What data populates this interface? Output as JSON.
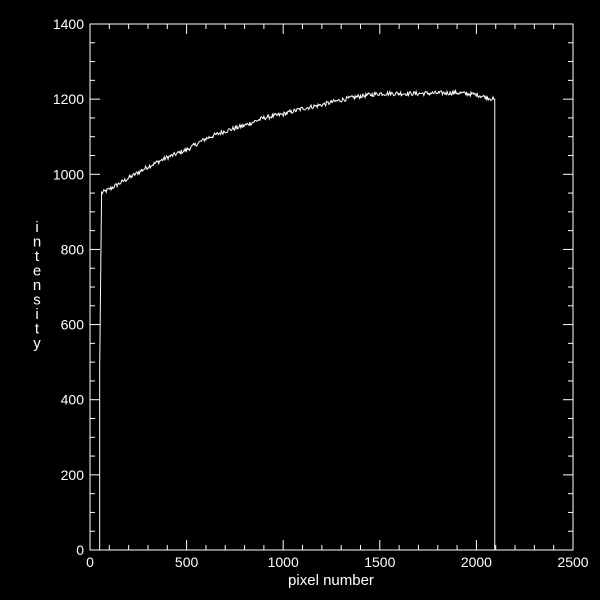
{
  "chart_data": {
    "type": "line",
    "title": "",
    "xlabel": "pixel number",
    "ylabel": "intensity",
    "xlim": [
      0,
      2500
    ],
    "ylim": [
      0,
      1400
    ],
    "x_ticks": [
      0,
      500,
      1000,
      1500,
      2000,
      2500
    ],
    "x_tick_labels": [
      "0",
      "500",
      "1000",
      "1500",
      "2000",
      "2500"
    ],
    "y_ticks": [
      0,
      200,
      400,
      600,
      800,
      1000,
      1200,
      1400
    ],
    "y_tick_labels": [
      "0",
      "200",
      "400",
      "600",
      "800",
      "1000",
      "1200",
      "1400"
    ],
    "grid": false,
    "colors": {
      "background": "#000000",
      "foreground": "#ffffff"
    },
    "series": [
      {
        "x": [
          50,
          50,
          60,
          100,
          200,
          300,
          400,
          500,
          600,
          700,
          800,
          900,
          1000,
          1100,
          1200,
          1300,
          1400,
          1500,
          1600,
          1700,
          1800,
          1900,
          2000,
          2050,
          2090,
          2095,
          2095
        ],
        "y": [
          0,
          480,
          950,
          960,
          990,
          1020,
          1045,
          1065,
          1095,
          1115,
          1130,
          1150,
          1160,
          1175,
          1185,
          1198,
          1208,
          1215,
          1215,
          1215,
          1216,
          1217,
          1212,
          1205,
          1200,
          1200,
          0
        ]
      }
    ]
  }
}
